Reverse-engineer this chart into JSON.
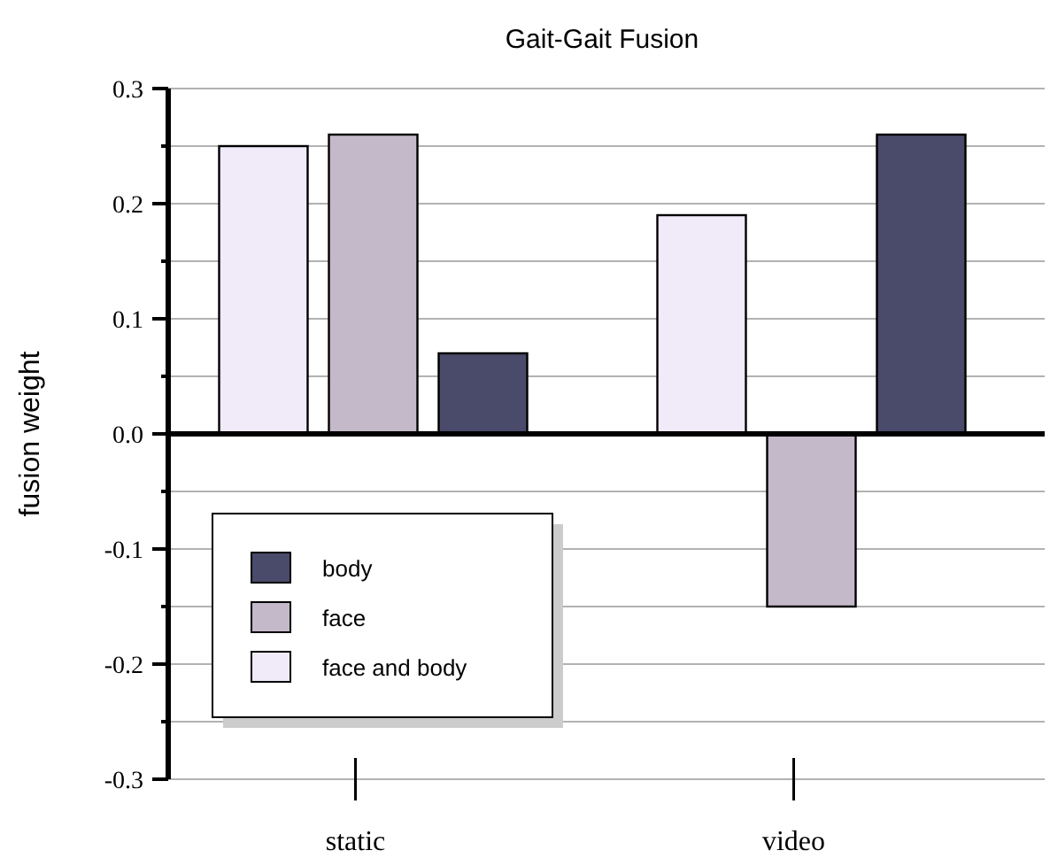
{
  "chart_data": {
    "type": "bar",
    "title": "Gait-Gait Fusion",
    "ylabel": "fusion weight",
    "categories": [
      "static",
      "video"
    ],
    "series": [
      {
        "name": "face and body",
        "color": "#f1eaf8",
        "values": [
          0.25,
          0.19
        ]
      },
      {
        "name": "face",
        "color": "#c4b9c8",
        "values": [
          0.26,
          -0.15
        ]
      },
      {
        "name": "body",
        "color": "#4a4a6a",
        "values": [
          0.07,
          0.26
        ]
      }
    ],
    "ylim": [
      -0.3,
      0.3
    ],
    "yticks": [
      {
        "value": -0.3,
        "label": "-0.3"
      },
      {
        "value": -0.25,
        "label": null
      },
      {
        "value": -0.2,
        "label": "-0.2"
      },
      {
        "value": -0.15,
        "label": null
      },
      {
        "value": -0.1,
        "label": "-0.1"
      },
      {
        "value": -0.05,
        "label": null
      },
      {
        "value": 0,
        "label": "0.0"
      },
      {
        "value": 0.05,
        "label": null
      },
      {
        "value": 0.1,
        "label": "0.1"
      },
      {
        "value": 0.15,
        "label": null
      },
      {
        "value": 0.2,
        "label": "0.2"
      },
      {
        "value": 0.25,
        "label": null
      },
      {
        "value": 0.3,
        "label": "0.3"
      }
    ],
    "grid": true,
    "legend": "bottom left"
  }
}
